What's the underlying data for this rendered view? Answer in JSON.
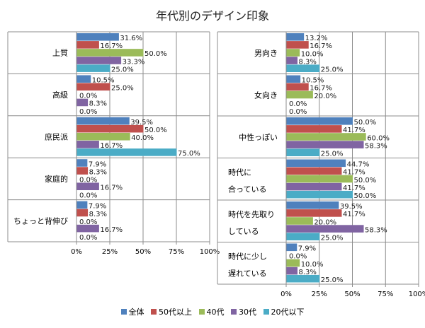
{
  "chart_data": [
    {
      "type": "bar",
      "orientation": "horizontal",
      "title": "年代別のデザイン印象",
      "categories": [
        "上質",
        "高級",
        "庶民派",
        "家庭的",
        "ちょっと背伸び"
      ],
      "series": [
        {
          "name": "全体",
          "color": "#4f81bd",
          "values": [
            31.6,
            10.5,
            39.5,
            7.9,
            7.9
          ]
        },
        {
          "name": "50代以上",
          "color": "#c0504d",
          "values": [
            16.7,
            25.0,
            50.0,
            8.3,
            8.3
          ]
        },
        {
          "name": "40代",
          "color": "#9bbb59",
          "values": [
            50.0,
            0.0,
            40.0,
            0.0,
            0.0
          ]
        },
        {
          "name": "30代",
          "color": "#8064a2",
          "values": [
            33.3,
            8.3,
            16.7,
            16.7,
            16.7
          ]
        },
        {
          "name": "20代以下",
          "color": "#4bacc6",
          "values": [
            25.0,
            0.0,
            75.0,
            0.0,
            0.0
          ]
        }
      ],
      "xlim": [
        0,
        100
      ],
      "xticks": [
        "0%",
        "25%",
        "50%",
        "75%",
        "100%"
      ],
      "grid": true,
      "value_format": "percent_1dp"
    },
    {
      "type": "bar",
      "orientation": "horizontal",
      "categories": [
        "男向き",
        "女向き",
        "中性っぽい",
        "時代に\n合っている",
        "時代を先取り\nしている",
        "時代に少し\n遅れている"
      ],
      "series": [
        {
          "name": "全体",
          "color": "#4f81bd",
          "values": [
            13.2,
            10.5,
            50.0,
            44.7,
            39.5,
            7.9
          ]
        },
        {
          "name": "50代以上",
          "color": "#c0504d",
          "values": [
            16.7,
            16.7,
            41.7,
            41.7,
            41.7,
            0.0
          ]
        },
        {
          "name": "40代",
          "color": "#9bbb59",
          "values": [
            10.0,
            20.0,
            60.0,
            50.0,
            20.0,
            10.0
          ]
        },
        {
          "name": "30代",
          "color": "#8064a2",
          "values": [
            8.3,
            0.0,
            58.3,
            41.7,
            58.3,
            8.3
          ]
        },
        {
          "name": "20代以下",
          "color": "#4bacc6",
          "values": [
            25.0,
            0.0,
            25.0,
            50.0,
            25.0,
            25.0
          ]
        }
      ],
      "xlim": [
        0,
        100
      ],
      "xticks": [
        "0%",
        "25%",
        "50%",
        "75%",
        "100%"
      ],
      "grid": true,
      "value_format": "percent_1dp"
    }
  ],
  "title": "年代別のデザイン印象",
  "legend": {
    "position": "bottom",
    "items": [
      {
        "label": "全体",
        "color": "#4f81bd"
      },
      {
        "label": "50代以上",
        "color": "#c0504d"
      },
      {
        "label": "40代",
        "color": "#9bbb59"
      },
      {
        "label": "30代",
        "color": "#8064a2"
      },
      {
        "label": "20代以下",
        "color": "#4bacc6"
      }
    ]
  }
}
